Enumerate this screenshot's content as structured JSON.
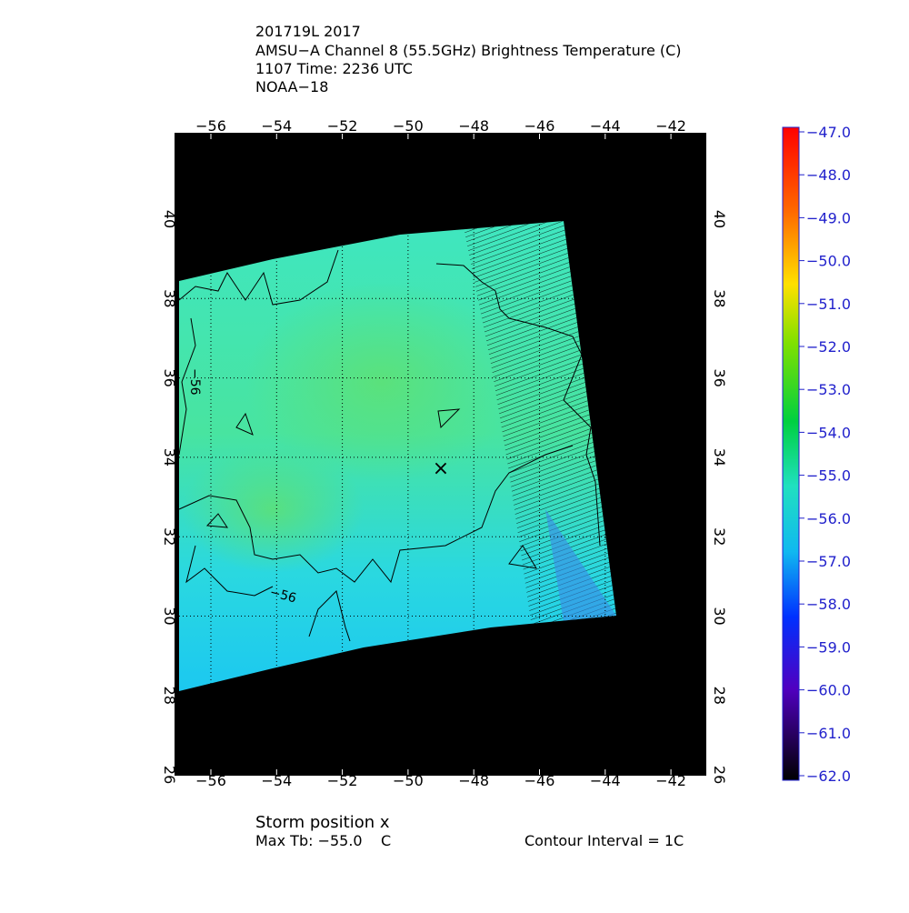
{
  "header": {
    "lines": [
      "201719L 2017",
      "AMSU−A Channel 8 (55.5GHz) Brightness Temperature (C)",
      "1107 Time: 2236 UTC",
      "NOAA−18"
    ]
  },
  "map": {
    "lon_ticks": [
      "−56",
      "−54",
      "−52",
      "−50",
      "−48",
      "−46",
      "−44",
      "−42"
    ],
    "lat_ticks": [
      "40",
      "38",
      "36",
      "34",
      "32",
      "30",
      "28",
      "26"
    ],
    "contour_labels": [
      "−56",
      "−56"
    ],
    "storm_marker": "×"
  },
  "colorbar": {
    "ticks": [
      "−47.0",
      "−48.0",
      "−49.0",
      "−50.0",
      "−51.0",
      "−52.0",
      "−53.0",
      "−54.0",
      "−55.0",
      "−56.0",
      "−57.0",
      "−58.0",
      "−59.0",
      "−60.0",
      "−61.0",
      "−62.0"
    ]
  },
  "footer": {
    "storm_position": "Storm position x",
    "max_tb": "Max Tb: −55.0    C",
    "contour_interval": "Contour Interval = 1C"
  }
}
